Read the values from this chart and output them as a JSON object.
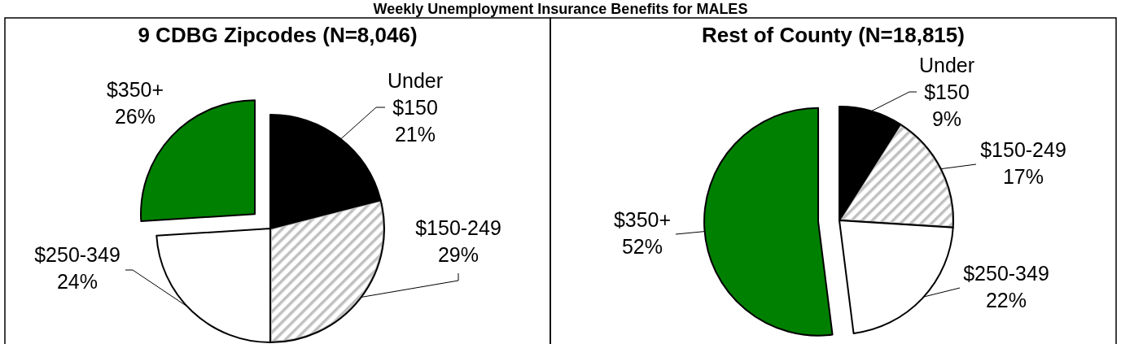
{
  "chart_data": [
    {
      "type": "other",
      "title": "Weekly Unemployment Insurance Benefits for MALES"
    },
    {
      "type": "pie",
      "title": "9 CDBG Zipcodes (N=8,046)",
      "categories": [
        "Under $150",
        "$150-249",
        "$250-349",
        "$350+"
      ],
      "values": [
        21,
        29,
        24,
        26
      ],
      "value_labels": [
        "21%",
        "29%",
        "24%",
        "26%"
      ],
      "colors": [
        "#000000",
        "#c0c0c0",
        "#ffffff",
        "#008000"
      ]
    },
    {
      "type": "pie",
      "title": "Rest of County (N=18,815)",
      "categories": [
        "Under $150",
        "$150-249",
        "$250-349",
        "$350+"
      ],
      "values": [
        9,
        17,
        22,
        52
      ],
      "value_labels": [
        "9%",
        "17%",
        "22%",
        "52%"
      ],
      "colors": [
        "#000000",
        "#c0c0c0",
        "#ffffff",
        "#008000"
      ]
    }
  ]
}
